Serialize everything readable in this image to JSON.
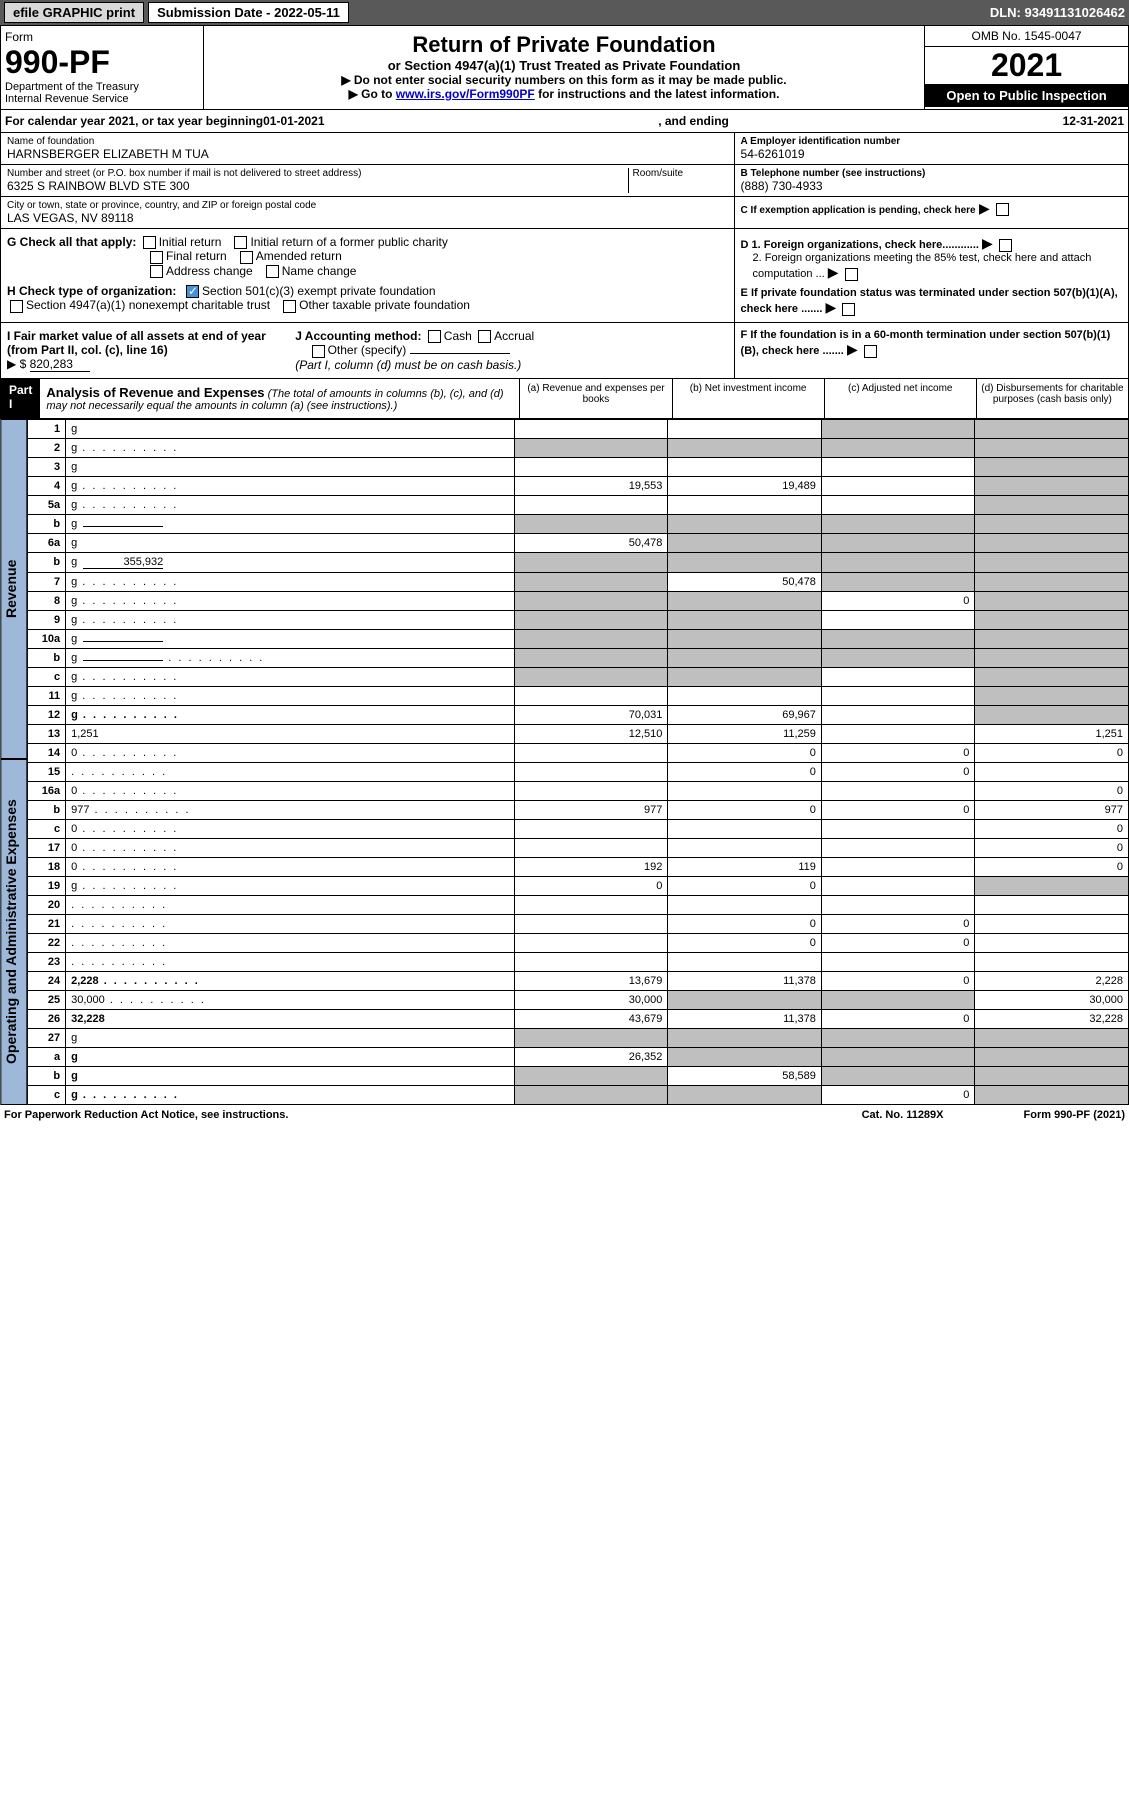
{
  "top": {
    "efile": "efile GRAPHIC print",
    "subdate_label": "Submission Date - 2022-05-11",
    "dln": "DLN: 93491131026462"
  },
  "header": {
    "form_word": "Form",
    "form_no": "990-PF",
    "dept": "Department of the Treasury",
    "irs": "Internal Revenue Service",
    "title": "Return of Private Foundation",
    "subtitle": "or Section 4947(a)(1) Trust Treated as Private Foundation",
    "instr1": "▶ Do not enter social security numbers on this form as it may be made public.",
    "instr2_pre": "▶ Go to ",
    "instr2_link": "www.irs.gov/Form990PF",
    "instr2_post": " for instructions and the latest information.",
    "omb": "OMB No. 1545-0047",
    "year": "2021",
    "open": "Open to Public Inspection"
  },
  "cal": {
    "text_pre": "For calendar year 2021, or tax year beginning ",
    "begin": "01-01-2021",
    "mid": ", and ending ",
    "end": "12-31-2021"
  },
  "info": {
    "name_label": "Name of foundation",
    "name": "HARNSBERGER ELIZABETH M TUA",
    "addr_label": "Number and street (or P.O. box number if mail is not delivered to street address)",
    "addr": "6325 S RAINBOW BLVD STE 300",
    "room_label": "Room/suite",
    "city_label": "City or town, state or province, country, and ZIP or foreign postal code",
    "city": "LAS VEGAS, NV  89118",
    "a_label": "A Employer identification number",
    "a_val": "54-6261019",
    "b_label": "B Telephone number (see instructions)",
    "b_val": "(888) 730-4933",
    "c_label": "C If exemption application is pending, check here",
    "d1": "D 1. Foreign organizations, check here............",
    "d2": "2. Foreign organizations meeting the 85% test, check here and attach computation ...",
    "e": "E  If private foundation status was terminated under section 507(b)(1)(A), check here .......",
    "f": "F  If the foundation is in a 60-month termination under section 507(b)(1)(B), check here .......",
    "g_label": "G Check all that apply:",
    "g_opts": [
      "Initial return",
      "Initial return of a former public charity",
      "Final return",
      "Amended return",
      "Address change",
      "Name change"
    ],
    "h_label": "H Check type of organization:",
    "h1": "Section 501(c)(3) exempt private foundation",
    "h2": "Section 4947(a)(1) nonexempt charitable trust",
    "h3": "Other taxable private foundation",
    "i_label": "I Fair market value of all assets at end of year (from Part II, col. (c), line 16)",
    "i_val": "820,283",
    "j_label": "J Accounting method:",
    "j_cash": "Cash",
    "j_accrual": "Accrual",
    "j_other": "Other (specify)",
    "j_note": "(Part I, column (d) must be on cash basis.)"
  },
  "part1": {
    "label": "Part I",
    "title": "Analysis of Revenue and Expenses",
    "note": "(The total of amounts in columns (b), (c), and (d) may not necessarily equal the amounts in column (a) (see instructions).)",
    "cols": {
      "a": "(a)  Revenue and expenses per books",
      "b": "(b)  Net investment income",
      "c": "(c)  Adjusted net income",
      "d": "(d)  Disbursements for charitable purposes (cash basis only)"
    }
  },
  "sides": {
    "rev": "Revenue",
    "exp": "Operating and Administrative Expenses"
  },
  "rows": [
    {
      "n": "1",
      "d": "g",
      "a": "",
      "b": "",
      "c": "g"
    },
    {
      "n": "2",
      "d": "g",
      "a": "g",
      "b": "g",
      "c": "g",
      "dots": true
    },
    {
      "n": "3",
      "d": "g",
      "a": "",
      "b": "",
      "c": ""
    },
    {
      "n": "4",
      "d": "g",
      "a": "19,553",
      "b": "19,489",
      "c": "",
      "dots": true
    },
    {
      "n": "5a",
      "d": "g",
      "a": "",
      "b": "",
      "c": "",
      "dots": true
    },
    {
      "n": "b",
      "d": "g",
      "a": "g",
      "b": "g",
      "c": "g",
      "inline": true
    },
    {
      "n": "6a",
      "d": "g",
      "a": "50,478",
      "b": "g",
      "c": "g"
    },
    {
      "n": "b",
      "d": "g",
      "a": "g",
      "b": "g",
      "c": "g",
      "inline": true,
      "ival": "355,932"
    },
    {
      "n": "7",
      "d": "g",
      "a": "g",
      "b": "50,478",
      "c": "g",
      "dots": true
    },
    {
      "n": "8",
      "d": "g",
      "a": "g",
      "b": "g",
      "c": "0",
      "dots": true
    },
    {
      "n": "9",
      "d": "g",
      "a": "g",
      "b": "g",
      "c": "",
      "dots": true
    },
    {
      "n": "10a",
      "d": "g",
      "a": "g",
      "b": "g",
      "c": "g",
      "inline": true
    },
    {
      "n": "b",
      "d": "g",
      "a": "g",
      "b": "g",
      "c": "g",
      "inline": true,
      "dots": true
    },
    {
      "n": "c",
      "d": "g",
      "a": "g",
      "b": "g",
      "c": "",
      "dots": true
    },
    {
      "n": "11",
      "d": "g",
      "a": "",
      "b": "",
      "c": "",
      "dots": true
    },
    {
      "n": "12",
      "d": "g",
      "a": "70,031",
      "b": "69,967",
      "c": "",
      "bold": true,
      "dots": true
    },
    {
      "n": "13",
      "d": "1,251",
      "a": "12,510",
      "b": "11,259",
      "c": ""
    },
    {
      "n": "14",
      "d": "0",
      "a": "",
      "b": "0",
      "c": "0",
      "dots": true
    },
    {
      "n": "15",
      "d": "",
      "a": "",
      "b": "0",
      "c": "0",
      "dots": true
    },
    {
      "n": "16a",
      "d": "0",
      "a": "",
      "b": "",
      "c": "",
      "dots": true
    },
    {
      "n": "b",
      "d": "977",
      "a": "977",
      "b": "0",
      "c": "0",
      "dots": true
    },
    {
      "n": "c",
      "d": "0",
      "a": "",
      "b": "",
      "c": "",
      "dots": true
    },
    {
      "n": "17",
      "d": "0",
      "a": "",
      "b": "",
      "c": "",
      "dots": true
    },
    {
      "n": "18",
      "d": "0",
      "a": "192",
      "b": "119",
      "c": "",
      "dots": true
    },
    {
      "n": "19",
      "d": "g",
      "a": "0",
      "b": "0",
      "c": "",
      "dots": true
    },
    {
      "n": "20",
      "d": "",
      "a": "",
      "b": "",
      "c": "",
      "dots": true
    },
    {
      "n": "21",
      "d": "",
      "a": "",
      "b": "0",
      "c": "0",
      "dots": true
    },
    {
      "n": "22",
      "d": "",
      "a": "",
      "b": "0",
      "c": "0",
      "dots": true
    },
    {
      "n": "23",
      "d": "",
      "a": "",
      "b": "",
      "c": "",
      "dots": true
    },
    {
      "n": "24",
      "d": "2,228",
      "a": "13,679",
      "b": "11,378",
      "c": "0",
      "bold": true,
      "dots": true
    },
    {
      "n": "25",
      "d": "30,000",
      "a": "30,000",
      "b": "g",
      "c": "g",
      "dots": true
    },
    {
      "n": "26",
      "d": "32,228",
      "a": "43,679",
      "b": "11,378",
      "c": "0",
      "bold": true
    },
    {
      "n": "27",
      "d": "g",
      "a": "g",
      "b": "g",
      "c": "g"
    },
    {
      "n": "a",
      "d": "g",
      "a": "26,352",
      "b": "g",
      "c": "g",
      "bold": true
    },
    {
      "n": "b",
      "d": "g",
      "a": "g",
      "b": "58,589",
      "c": "g",
      "bold": true
    },
    {
      "n": "c",
      "d": "g",
      "a": "g",
      "b": "g",
      "c": "0",
      "bold": true,
      "dots": true
    }
  ],
  "footer": {
    "left": "For Paperwork Reduction Act Notice, see instructions.",
    "mid": "Cat. No. 11289X",
    "right": "Form 990-PF (2021)"
  }
}
